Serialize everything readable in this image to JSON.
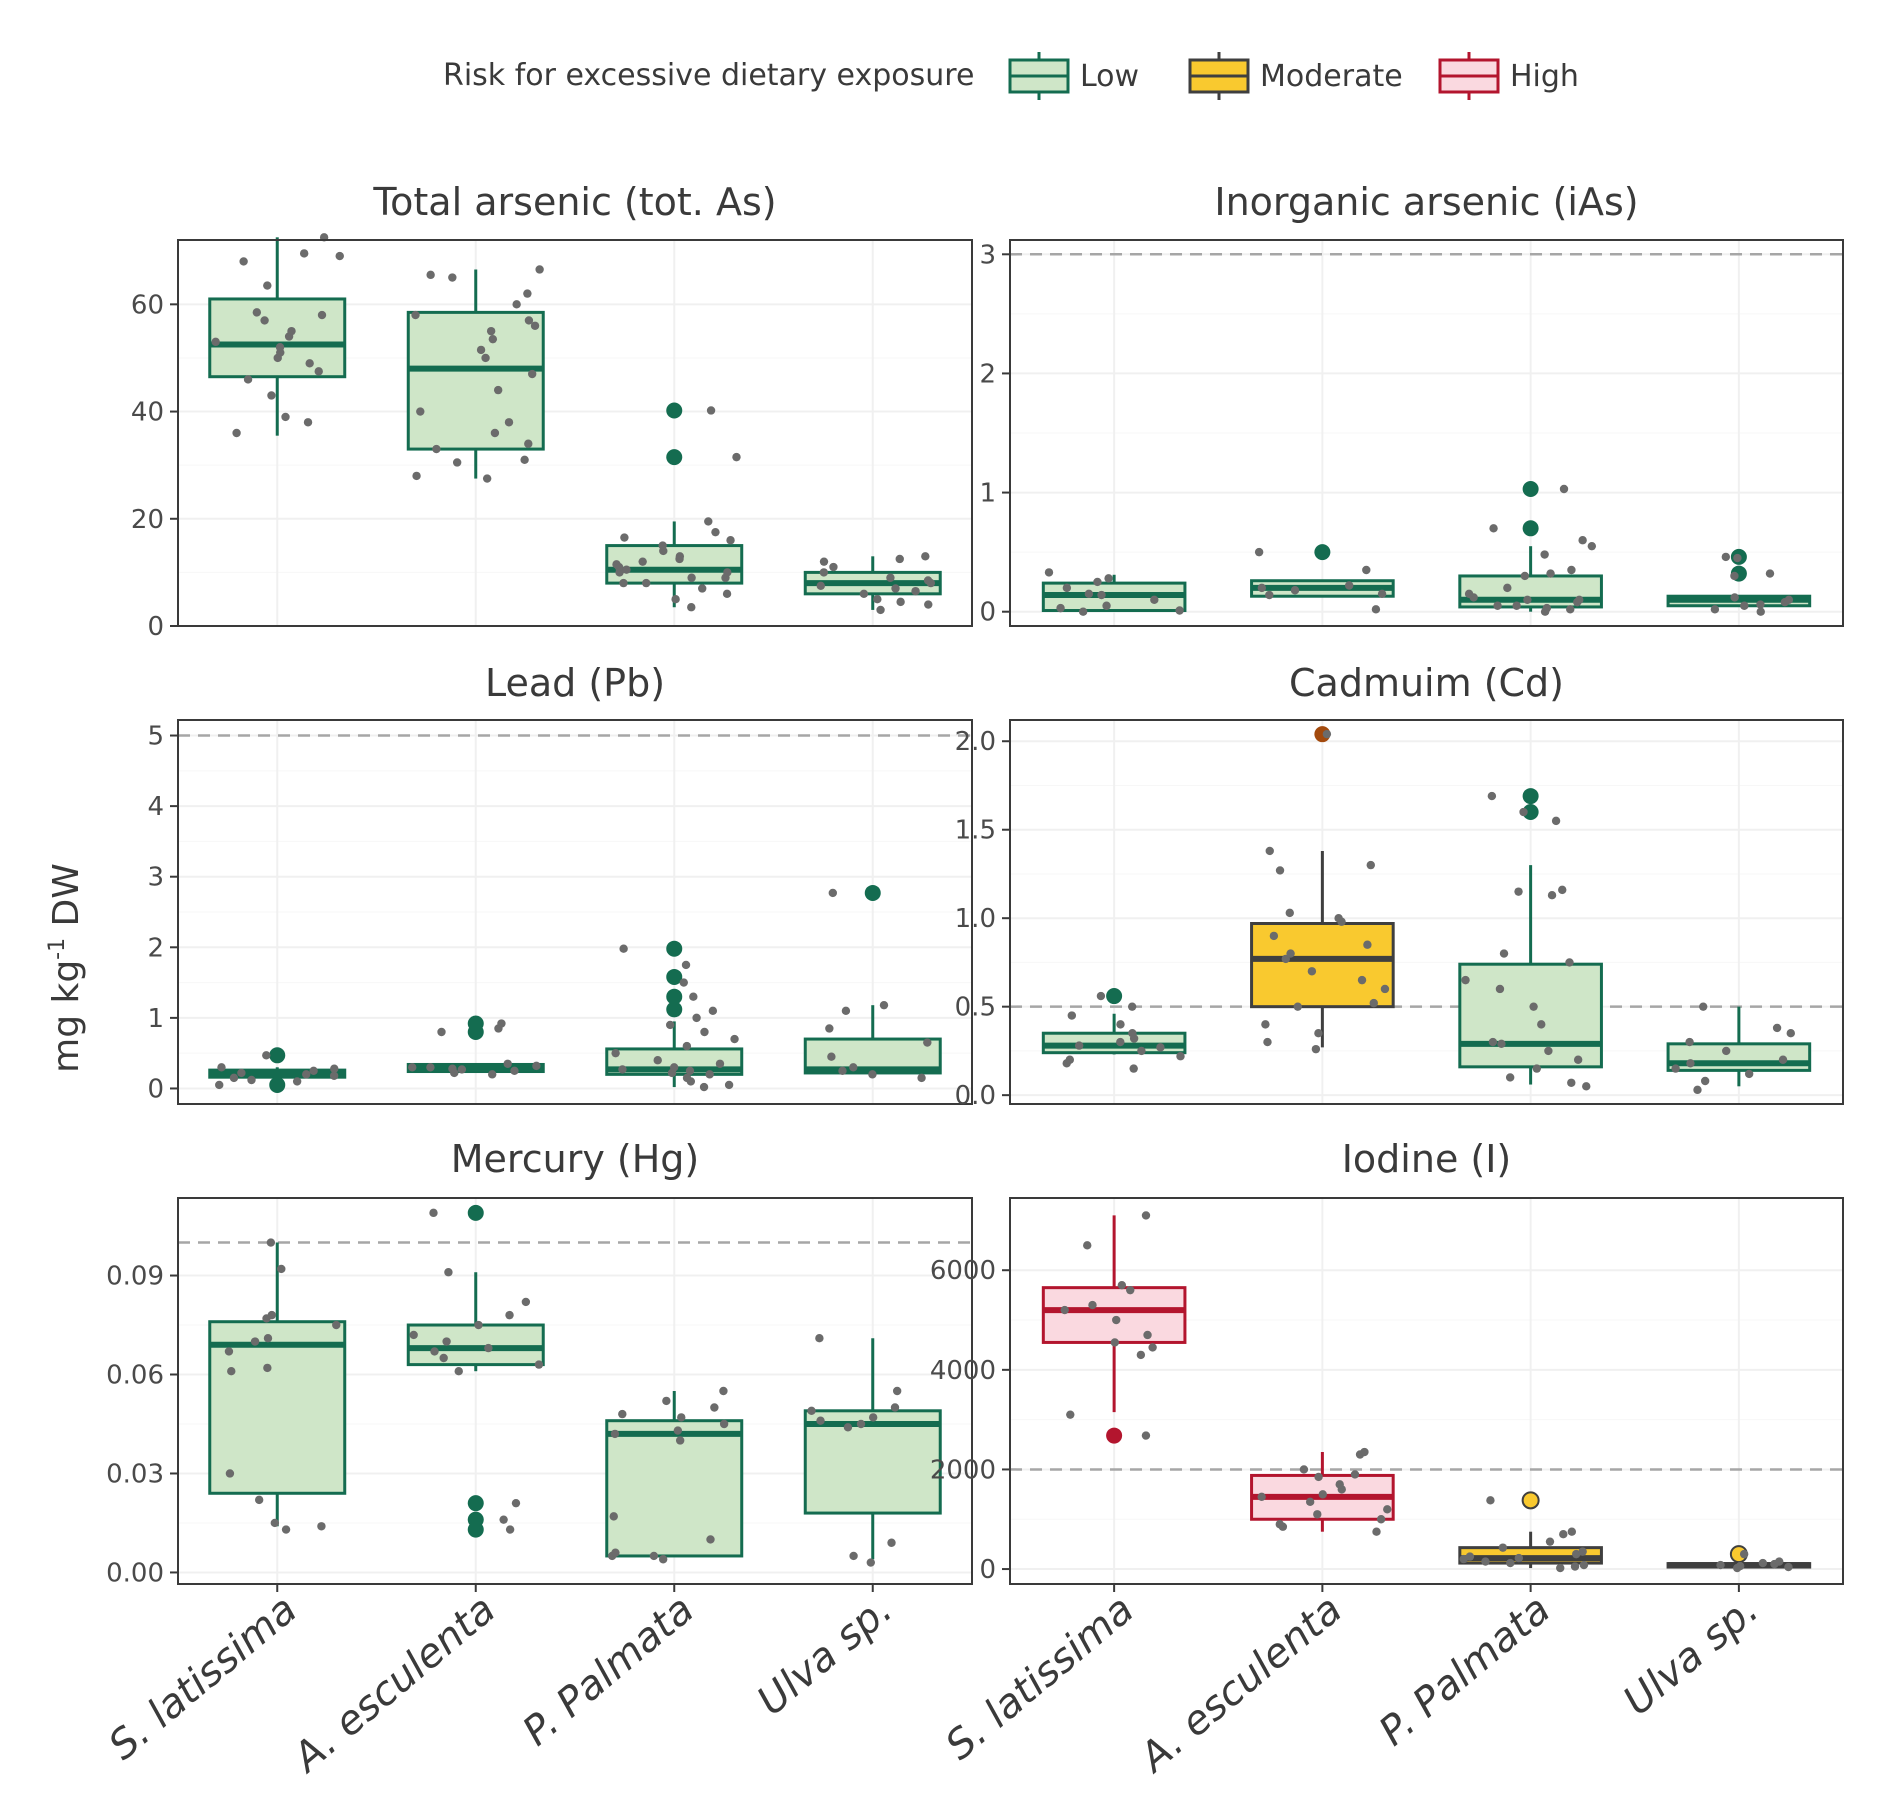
{
  "legend": {
    "title": "Risk for excessive dietary exposure",
    "levels": [
      {
        "key": "low",
        "label": "Low",
        "fill": "#cfe6c8",
        "stroke": "#146c50"
      },
      {
        "key": "moderate",
        "label": "Moderate",
        "fill": "#f9c92f",
        "stroke": "#3f3f3f"
      },
      {
        "key": "high",
        "label": "High",
        "fill": "#fad9e0",
        "stroke": "#b3152e"
      }
    ]
  },
  "y_axis_label": "mg kg-1 DW",
  "categories": [
    "S. latissima",
    "A. esculenta",
    "P. Palmata",
    "Ulva sp."
  ],
  "colors": {
    "jitter_point": "#6b6b6b",
    "threshold_line": "#a6a6a6",
    "moderate_outlier": "#a34a0d",
    "panel_border": "#3a3a3a",
    "grid": "#f0f0f0"
  },
  "chart_data": [
    {
      "type": "box",
      "title": "Total arsenic (tot. As)",
      "ylim": [
        0,
        72
      ],
      "yticks": [
        0,
        20,
        40,
        60
      ],
      "threshold": null,
      "series": [
        {
          "category": "S. latissima",
          "risk": "low",
          "min": 35.5,
          "q1": 46.5,
          "median": 52.5,
          "q3": 61,
          "max": 72.5,
          "outliers": [],
          "points": [
            36,
            38,
            39,
            43,
            46,
            47.5,
            49,
            50,
            51,
            52,
            53,
            54,
            55,
            57,
            58,
            58.5,
            63.5,
            68,
            69,
            69.5,
            72.5
          ]
        },
        {
          "category": "A. esculenta",
          "risk": "low",
          "min": 27.5,
          "q1": 33,
          "median": 48,
          "q3": 58.5,
          "max": 66.5,
          "outliers": [],
          "points": [
            27.5,
            28,
            30.5,
            31,
            33,
            34,
            36,
            38,
            40,
            44,
            47,
            50,
            51.5,
            53.5,
            55,
            56,
            57,
            58,
            60,
            62,
            65,
            65.5,
            66.5
          ]
        },
        {
          "category": "P. Palmata",
          "risk": "low",
          "min": 3.5,
          "q1": 8,
          "median": 10.5,
          "q3": 15,
          "max": 19.5,
          "outliers": [
            31.5,
            40.2
          ],
          "points": [
            3.5,
            5,
            6,
            7,
            8,
            8,
            9,
            9,
            10,
            10,
            10.5,
            11,
            11.5,
            12,
            12.5,
            13,
            14,
            15,
            16,
            16.5,
            17.5,
            19.5,
            31.5,
            40.2
          ]
        },
        {
          "category": "Ulva sp.",
          "risk": "low",
          "min": 3,
          "q1": 6,
          "median": 8,
          "q3": 10,
          "max": 13,
          "outliers": [],
          "points": [
            3,
            4,
            4.5,
            5,
            6,
            6.5,
            7,
            7.5,
            8,
            8.5,
            9,
            10,
            11,
            12,
            12.5,
            13
          ]
        }
      ]
    },
    {
      "type": "box",
      "title": "Inorganic arsenic (iAs)",
      "ylim": [
        -0.12,
        3.12
      ],
      "yticks": [
        0,
        1,
        2,
        3
      ],
      "threshold": 3,
      "series": [
        {
          "category": "S. latissima",
          "risk": "low",
          "min": 0,
          "q1": 0.01,
          "median": 0.14,
          "q3": 0.24,
          "max": 0.31,
          "outliers": [],
          "points": [
            0,
            0.01,
            0.03,
            0.05,
            0.1,
            0.14,
            0.15,
            0.2,
            0.25,
            0.28,
            0.33
          ]
        },
        {
          "category": "A. esculenta",
          "risk": "low",
          "min": 0.12,
          "q1": 0.13,
          "median": 0.2,
          "q3": 0.26,
          "max": 0.27,
          "outliers": [
            0.5
          ],
          "points": [
            0.02,
            0.14,
            0.15,
            0.18,
            0.2,
            0.22,
            0.35,
            0.5
          ]
        },
        {
          "category": "P. Palmata",
          "risk": "low",
          "min": 0,
          "q1": 0.04,
          "median": 0.1,
          "q3": 0.3,
          "max": 0.55,
          "outliers": [
            0.7,
            1.03
          ],
          "points": [
            0,
            0.02,
            0.03,
            0.05,
            0.05,
            0.08,
            0.1,
            0.1,
            0.12,
            0.15,
            0.2,
            0.3,
            0.32,
            0.35,
            0.48,
            0.55,
            0.6,
            0.7,
            1.03
          ]
        },
        {
          "category": "Ulva sp.",
          "risk": "low",
          "min": 0.04,
          "q1": 0.05,
          "median": 0.1,
          "q3": 0.13,
          "max": 0.13,
          "outliers": [
            0.32,
            0.46
          ],
          "points": [
            0,
            0.02,
            0.05,
            0.06,
            0.08,
            0.1,
            0.12,
            0.3,
            0.32,
            0.45,
            0.46
          ]
        }
      ]
    },
    {
      "type": "box",
      "title": "Lead (Pb)",
      "ylim": [
        -0.22,
        5.22
      ],
      "yticks": [
        0,
        1,
        2,
        3,
        4,
        5
      ],
      "threshold": 5,
      "series": [
        {
          "category": "S. latissima",
          "risk": "low",
          "min": 0.14,
          "q1": 0.16,
          "median": 0.2,
          "q3": 0.26,
          "max": 0.3,
          "outliers": [
            0.05,
            0.47
          ],
          "points": [
            0.05,
            0.1,
            0.12,
            0.15,
            0.18,
            0.2,
            0.22,
            0.25,
            0.28,
            0.3,
            0.47
          ]
        },
        {
          "category": "A. esculenta",
          "risk": "low",
          "min": 0.22,
          "q1": 0.24,
          "median": 0.3,
          "q3": 0.34,
          "max": 0.36,
          "outliers": [
            0.8,
            0.92
          ],
          "points": [
            0.2,
            0.22,
            0.25,
            0.27,
            0.28,
            0.3,
            0.3,
            0.32,
            0.35,
            0.8,
            0.85,
            0.92
          ]
        },
        {
          "category": "P. Palmata",
          "risk": "low",
          "min": 0.02,
          "q1": 0.2,
          "median": 0.27,
          "q3": 0.56,
          "max": 0.95,
          "outliers": [
            1.12,
            1.3,
            1.58,
            1.98
          ],
          "points": [
            0.02,
            0.05,
            0.1,
            0.15,
            0.2,
            0.22,
            0.25,
            0.27,
            0.3,
            0.35,
            0.4,
            0.5,
            0.6,
            0.7,
            0.8,
            0.9,
            1.0,
            1.1,
            1.3,
            1.5,
            1.75,
            1.98
          ]
        },
        {
          "category": "Ulva sp.",
          "risk": "low",
          "min": 0.2,
          "q1": 0.22,
          "median": 0.27,
          "q3": 0.7,
          "max": 1.18,
          "outliers": [
            2.77
          ],
          "points": [
            0.15,
            0.2,
            0.25,
            0.3,
            0.45,
            0.65,
            0.85,
            1.1,
            1.18,
            2.77
          ]
        }
      ]
    },
    {
      "type": "box",
      "title": "Cadmuim (Cd)",
      "ylim": [
        -0.05,
        2.12
      ],
      "yticks": [
        0,
        0.5,
        1,
        1.5,
        2
      ],
      "yticklabels": [
        "0.0",
        "0.5",
        "1.0",
        "1.5",
        "2.0"
      ],
      "threshold": 0.5,
      "series": [
        {
          "category": "S. latissima",
          "risk": "low",
          "min": 0.23,
          "q1": 0.24,
          "median": 0.28,
          "q3": 0.35,
          "max": 0.46,
          "outliers": [
            0.56
          ],
          "points": [
            0.15,
            0.18,
            0.2,
            0.22,
            0.25,
            0.27,
            0.28,
            0.3,
            0.32,
            0.35,
            0.4,
            0.45,
            0.5,
            0.56
          ]
        },
        {
          "category": "A. esculenta",
          "risk": "moderate",
          "min": 0.27,
          "q1": 0.5,
          "median": 0.77,
          "q3": 0.97,
          "max": 1.38,
          "outliers": [
            2.04
          ],
          "points": [
            0.26,
            0.3,
            0.35,
            0.4,
            0.5,
            0.52,
            0.6,
            0.65,
            0.7,
            0.77,
            0.8,
            0.85,
            0.9,
            0.98,
            1.0,
            1.03,
            1.27,
            1.3,
            1.38,
            2.04
          ]
        },
        {
          "category": "P. Palmata",
          "risk": "low",
          "min": 0.06,
          "q1": 0.16,
          "median": 0.29,
          "q3": 0.74,
          "max": 1.3,
          "outliers": [
            1.6,
            1.69
          ],
          "points": [
            0.05,
            0.07,
            0.1,
            0.15,
            0.2,
            0.25,
            0.29,
            0.3,
            0.4,
            0.5,
            0.6,
            0.65,
            0.75,
            0.8,
            1.13,
            1.15,
            1.16,
            1.55,
            1.6,
            1.69
          ]
        },
        {
          "category": "Ulva sp.",
          "risk": "low",
          "min": 0.05,
          "q1": 0.14,
          "median": 0.18,
          "q3": 0.29,
          "max": 0.5,
          "outliers": [],
          "points": [
            0.03,
            0.08,
            0.12,
            0.15,
            0.18,
            0.2,
            0.25,
            0.3,
            0.35,
            0.38,
            0.5
          ]
        }
      ]
    },
    {
      "type": "box",
      "title": "Mercury (Hg)",
      "ylim": [
        -0.0035,
        0.1135
      ],
      "yticks": [
        0,
        0.03,
        0.06,
        0.09
      ],
      "yticklabels": [
        "0.00",
        "0.03",
        "0.06",
        "0.09"
      ],
      "threshold": 0.1,
      "series": [
        {
          "category": "S. latissima",
          "risk": "low",
          "min": 0.014,
          "q1": 0.024,
          "median": 0.069,
          "q3": 0.076,
          "max": 0.1,
          "outliers": [],
          "points": [
            0.013,
            0.014,
            0.015,
            0.022,
            0.03,
            0.061,
            0.062,
            0.067,
            0.07,
            0.071,
            0.075,
            0.077,
            0.078,
            0.092,
            0.1
          ]
        },
        {
          "category": "A. esculenta",
          "risk": "low",
          "min": 0.061,
          "q1": 0.063,
          "median": 0.068,
          "q3": 0.075,
          "max": 0.091,
          "outliers": [
            0.013,
            0.016,
            0.021,
            0.109
          ],
          "points": [
            0.013,
            0.016,
            0.021,
            0.061,
            0.063,
            0.065,
            0.067,
            0.068,
            0.07,
            0.072,
            0.075,
            0.078,
            0.082,
            0.091,
            0.109
          ]
        },
        {
          "category": "P. Palmata",
          "risk": "low",
          "min": 0.005,
          "q1": 0.005,
          "median": 0.042,
          "q3": 0.046,
          "max": 0.055,
          "outliers": [],
          "points": [
            0.004,
            0.005,
            0.005,
            0.006,
            0.01,
            0.017,
            0.04,
            0.042,
            0.043,
            0.045,
            0.047,
            0.048,
            0.05,
            0.052,
            0.055
          ]
        },
        {
          "category": "Ulva sp.",
          "risk": "low",
          "min": 0.004,
          "q1": 0.018,
          "median": 0.045,
          "q3": 0.049,
          "max": 0.071,
          "outliers": [],
          "points": [
            0.003,
            0.005,
            0.009,
            0.044,
            0.045,
            0.046,
            0.047,
            0.049,
            0.05,
            0.055,
            0.071
          ]
        }
      ]
    },
    {
      "type": "box",
      "title": "Iodine (I)",
      "ylim": [
        -300,
        7450
      ],
      "yticks": [
        0,
        2000,
        4000,
        6000
      ],
      "threshold": 2000,
      "series": [
        {
          "category": "S. latissima",
          "risk": "high",
          "min": 3150,
          "q1": 4550,
          "median": 5200,
          "q3": 5650,
          "max": 7100,
          "outliers": [
            2680
          ],
          "points": [
            2680,
            3100,
            4300,
            4450,
            4550,
            4700,
            5000,
            5200,
            5300,
            5600,
            5700,
            6500,
            7100
          ]
        },
        {
          "category": "A. esculenta",
          "risk": "high",
          "min": 750,
          "q1": 1000,
          "median": 1450,
          "q3": 1880,
          "max": 2350,
          "outliers": [],
          "points": [
            750,
            850,
            900,
            1000,
            1100,
            1200,
            1350,
            1450,
            1500,
            1600,
            1700,
            1850,
            1900,
            2000,
            2300,
            2350
          ]
        },
        {
          "category": "P. Palmata",
          "risk": "moderate",
          "min": 20,
          "q1": 120,
          "median": 220,
          "q3": 430,
          "max": 750,
          "outliers": [
            1380
          ],
          "points": [
            20,
            50,
            80,
            120,
            150,
            200,
            220,
            250,
            300,
            350,
            430,
            550,
            700,
            750,
            1380
          ]
        },
        {
          "category": "Ulva sp.",
          "risk": "moderate",
          "min": 30,
          "q1": 40,
          "median": 80,
          "q3": 110,
          "max": 150,
          "outliers": [
            300
          ],
          "points": [
            20,
            40,
            60,
            80,
            100,
            120,
            150,
            300
          ]
        }
      ]
    }
  ]
}
